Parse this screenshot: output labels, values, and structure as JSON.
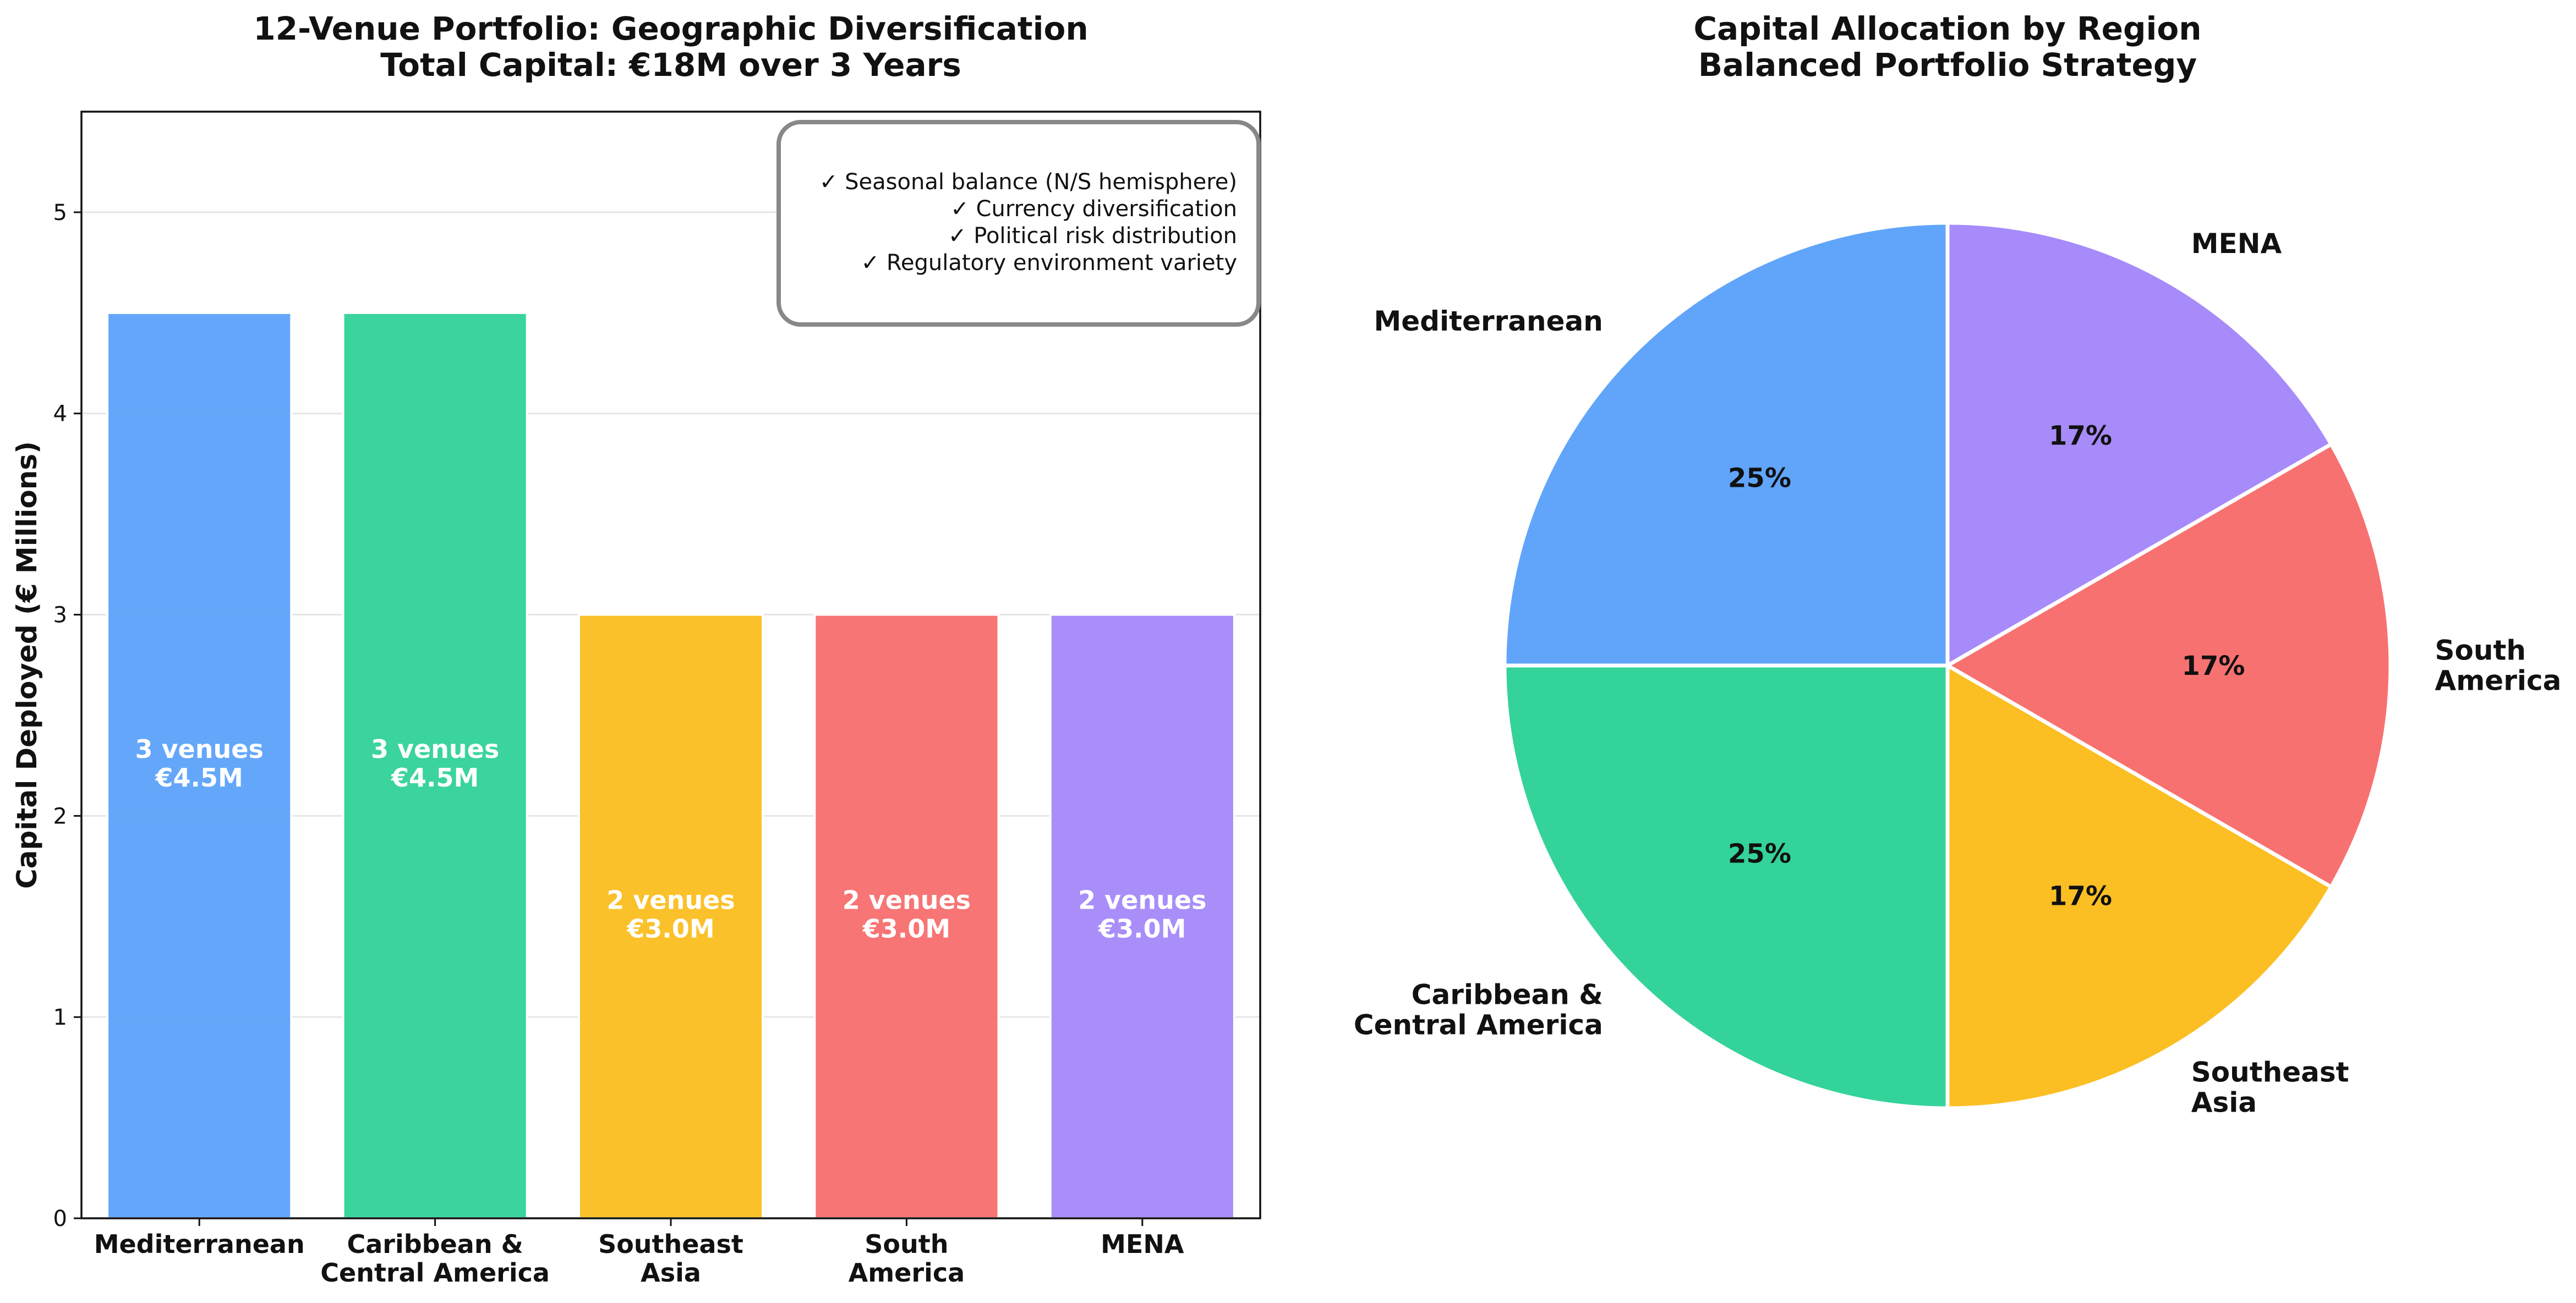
{
  "chart_data": [
    {
      "type": "bar",
      "title": [
        "12-Venue Portfolio: Geographic Diversification",
        "Total Capital: €18M over 3 Years"
      ],
      "xlabel": "",
      "ylabel": "Capital Deployed (€ Millions)",
      "ylim": [
        0,
        5.5
      ],
      "yticks": [
        "0",
        "1",
        "2",
        "3",
        "4",
        "5"
      ],
      "grid": true,
      "categories": [
        [
          "Mediterranean"
        ],
        [
          "Caribbean &",
          "Central America"
        ],
        [
          "Southeast",
          "Asia"
        ],
        [
          "South",
          "America"
        ],
        [
          "MENA"
        ]
      ],
      "values": [
        4.5,
        4.5,
        3.0,
        3.0,
        3.0
      ],
      "bar_labels": [
        [
          "3 venues",
          "€4.5M"
        ],
        [
          "3 venues",
          "€4.5M"
        ],
        [
          "2 venues",
          "€3.0M"
        ],
        [
          "2 venues",
          "€3.0M"
        ],
        [
          "2 venues",
          "€3.0M"
        ]
      ],
      "colors": [
        "#60a5fa",
        "#34d399",
        "#fbbf24",
        "#f87171",
        "#a78bfa"
      ],
      "annotation": [
        "✓ Seasonal balance (N/S hemisphere)",
        "✓ Currency diversification",
        "✓ Political risk distribution",
        "✓ Regulatory environment variety"
      ],
      "annotation_placement": "top-right"
    },
    {
      "type": "pie",
      "title": [
        "Capital Allocation by Region",
        "Balanced Portfolio Strategy"
      ],
      "labels": [
        [
          "Mediterranean"
        ],
        [
          "Caribbean &",
          "Central America"
        ],
        [
          "Southeast",
          "Asia"
        ],
        [
          "South",
          "America"
        ],
        [
          "MENA"
        ]
      ],
      "values": [
        4.5,
        4.5,
        3.0,
        3.0,
        3.0
      ],
      "pct_labels": [
        "25%",
        "25%",
        "17%",
        "17%",
        "17%"
      ],
      "colors": [
        "#60a5fa",
        "#34d399",
        "#fbbf24",
        "#f87171",
        "#a78bfa"
      ],
      "start_angle_deg": 90,
      "direction": "counterclockwise"
    }
  ]
}
